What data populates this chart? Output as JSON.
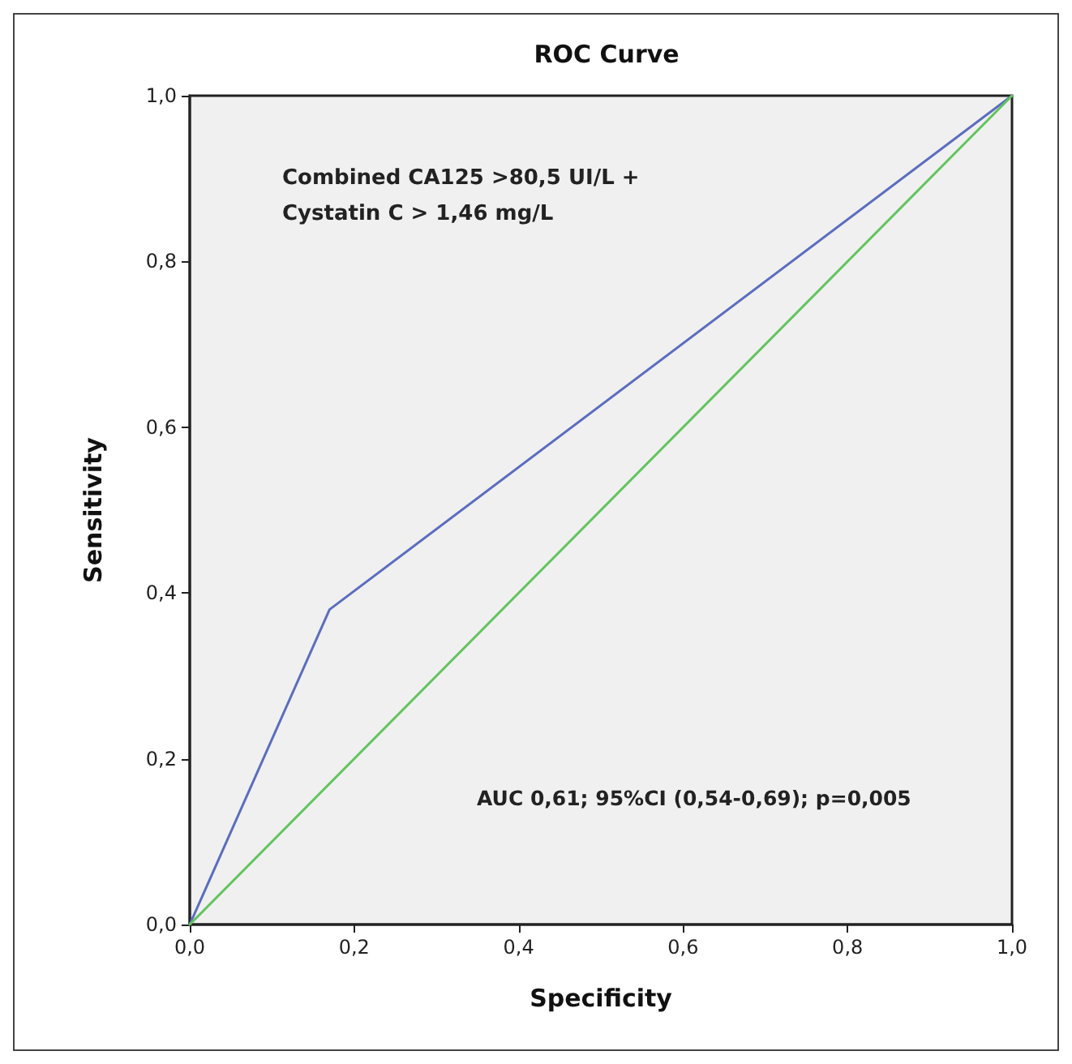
{
  "chart_data": {
    "type": "line",
    "title": "ROC Curve",
    "xlabel": "Specificity",
    "ylabel": "Sensitivity",
    "series": [
      {
        "color": "#5b6dbf",
        "x": [
          0,
          0.17,
          1
        ],
        "values": [
          0,
          0.38,
          1
        ]
      },
      {
        "color": "#62c45e",
        "x": [
          0,
          1
        ],
        "values": [
          0,
          1
        ]
      }
    ],
    "xlim": [
      0,
      1
    ],
    "ylim": [
      0,
      1
    ],
    "xticks": [
      {
        "value": 0,
        "label": "0,0"
      },
      {
        "value": 0.2,
        "label": "0,2"
      },
      {
        "value": 0.4,
        "label": "0,4"
      },
      {
        "value": 0.6,
        "label": "0,6"
      },
      {
        "value": 0.8,
        "label": "0,8"
      },
      {
        "value": 1,
        "label": "1,0"
      }
    ],
    "yticks": [
      {
        "value": 0,
        "label": "0,0"
      },
      {
        "value": 0.2,
        "label": "0,2"
      },
      {
        "value": 0.4,
        "label": "0,4"
      },
      {
        "value": 0.6,
        "label": "0,6"
      },
      {
        "value": 0.8,
        "label": "0,8"
      },
      {
        "value": 1,
        "label": "1,0"
      }
    ],
    "annotations": [
      "Combined CA125 >80,5 UI/L +\nCystatin C > 1,46 mg/L",
      "AUC 0,61; 95%CI (0,54-0,69); p=0,005"
    ],
    "grid": false,
    "marker": "none",
    "line_style": "solid"
  }
}
